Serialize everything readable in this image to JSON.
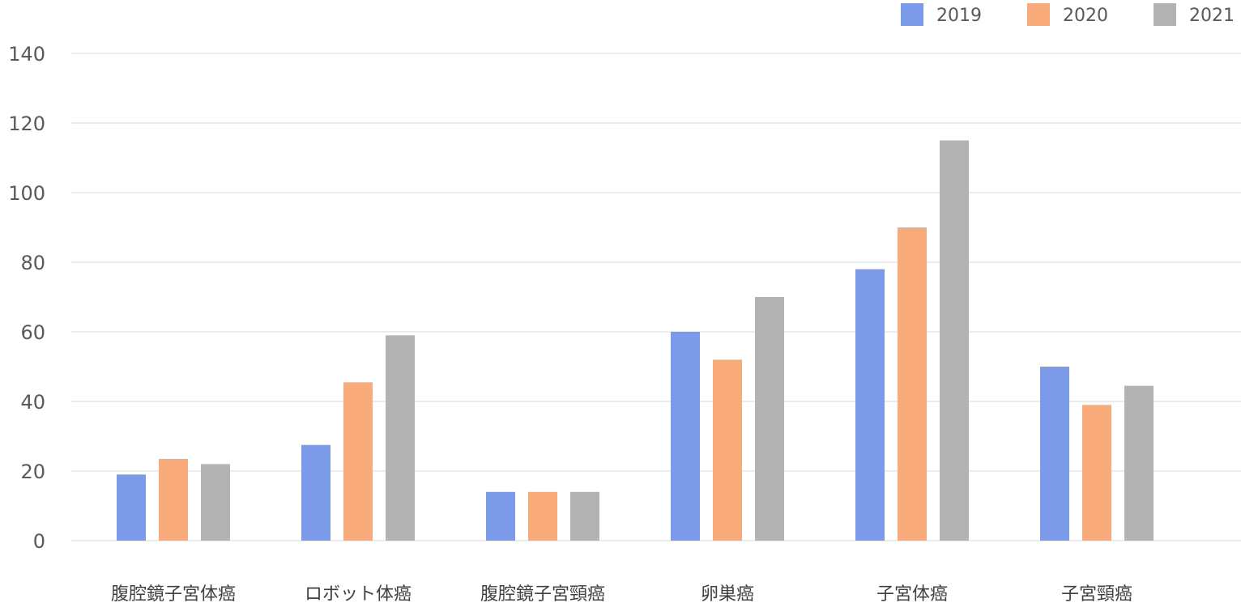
{
  "chart_data": {
    "type": "bar",
    "categories": [
      "腹腔鏡子宮体癌",
      "ロボット体癌",
      "腹腔鏡子宮頸癌",
      "卵巣癌",
      "子宮体癌",
      "子宮頸癌"
    ],
    "series": [
      {
        "name": "2019",
        "color": "#7b9be9",
        "values": [
          19,
          27.5,
          14,
          60,
          78,
          50
        ]
      },
      {
        "name": "2020",
        "color": "#f8aa7a",
        "values": [
          23.5,
          45.5,
          14,
          52,
          90,
          39
        ]
      },
      {
        "name": "2021",
        "color": "#b3b3b3",
        "values": [
          22,
          59,
          14,
          70,
          115,
          44.5
        ]
      }
    ],
    "yticks": [
      "0",
      "20",
      "40",
      "60",
      "80",
      "100",
      "120",
      "140"
    ],
    "ylim": [
      0,
      140
    ],
    "grid": true,
    "legend_position": "top-right",
    "title": "",
    "xlabel": "",
    "ylabel": ""
  }
}
